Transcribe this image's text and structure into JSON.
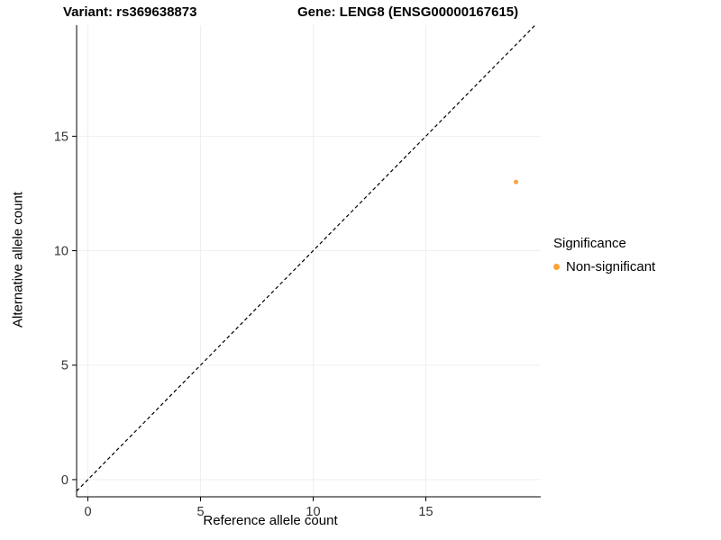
{
  "header": {
    "title_left": "Variant: rs369638873",
    "title_right": "Gene: LENG8 (ENSG00000167615)"
  },
  "chart_data": {
    "type": "scatter",
    "xlabel": "Reference allele count",
    "ylabel": "Alternative allele count",
    "xlim": [
      -0.5,
      20.1
    ],
    "ylim": [
      -0.75,
      19.85
    ],
    "xticks": [
      0,
      5,
      10,
      15
    ],
    "yticks": [
      0,
      5,
      10,
      15
    ],
    "grid": true,
    "grid_color": "#efefef",
    "axis_color": "#000000",
    "tick_label_color": "#333333",
    "identity_line": {
      "style": "dashed",
      "equation": "y = x",
      "color": "#000000"
    },
    "series": [
      {
        "name": "Non-significant",
        "color": "#FBA338",
        "points": [
          {
            "x": 19,
            "y": 13
          }
        ],
        "point_radius": 2.5
      }
    ],
    "legend": {
      "title": "Significance",
      "position": "right",
      "entries": [
        {
          "label": "Non-significant",
          "color": "#FBA338"
        }
      ]
    }
  }
}
